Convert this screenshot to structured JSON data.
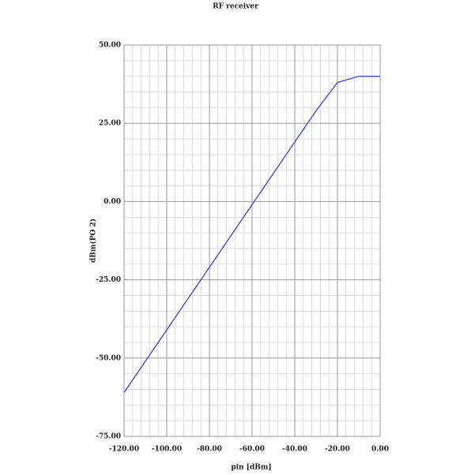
{
  "chart_data": {
    "type": "line",
    "title": "RF receiver",
    "x_label": "pin [dBm]",
    "y_label": "dBm(PO 2)",
    "xlim": [
      -120,
      0
    ],
    "xticks": [
      {
        "value": -120,
        "label": "-120.00"
      },
      {
        "value": -100,
        "label": "-100.00"
      },
      {
        "value": -80,
        "label": "-80.00"
      },
      {
        "value": -60,
        "label": "-60.00"
      },
      {
        "value": -40,
        "label": "-40.00"
      },
      {
        "value": -20,
        "label": "-20.00"
      },
      {
        "value": 0,
        "label": "0.00"
      }
    ],
    "ylim": [
      -75,
      50
    ],
    "yticks": [
      {
        "value": -75,
        "label": "-75.00"
      },
      {
        "value": -50,
        "label": "-50.00"
      },
      {
        "value": -25,
        "label": "-25.00"
      },
      {
        "value": 0,
        "label": "0.00"
      },
      {
        "value": 25,
        "label": "25.00"
      },
      {
        "value": 50,
        "label": "50.00"
      }
    ],
    "grid": true,
    "series": [
      {
        "color": "#4040e0",
        "x": [
          -120,
          -30,
          -20,
          -10,
          0
        ],
        "values": [
          -61,
          29,
          38,
          40,
          40
        ]
      }
    ]
  }
}
